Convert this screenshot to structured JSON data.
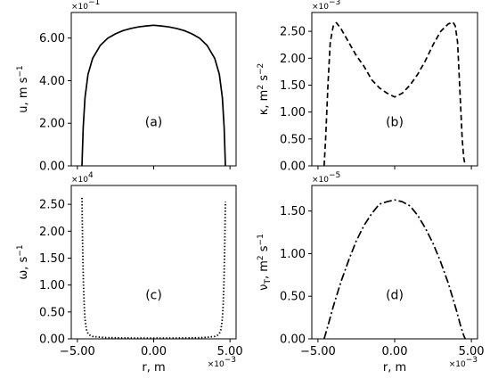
{
  "chart_data": [
    {
      "id": "a",
      "type": "line",
      "panel_label": "(a)",
      "ylabel": "u, m s^-1",
      "xlabel": "",
      "y_multiplier": "×10^-1",
      "x_multiplier": "",
      "xlim": [
        -5.4,
        5.4
      ],
      "ylim": [
        0,
        7.2
      ],
      "yticks": [
        0,
        2,
        4,
        6
      ],
      "ytick_labels": [
        "0.00",
        "2.00",
        "4.00",
        "6.00"
      ],
      "xticks": [],
      "xtick_labels": [],
      "line_style": "solid",
      "grid": false,
      "series": [
        {
          "x": [
            -4.7,
            -4.62,
            -4.5,
            -4.3,
            -4.0,
            -3.5,
            -3.0,
            -2.5,
            -2.0,
            -1.5,
            -1.0,
            -0.5,
            0,
            0.5,
            1.0,
            1.5,
            2.0,
            2.5,
            3.0,
            3.5,
            4.0,
            4.3,
            4.5,
            4.62,
            4.7
          ],
          "y": [
            0,
            1.8,
            3.2,
            4.3,
            5.05,
            5.65,
            6.0,
            6.2,
            6.35,
            6.45,
            6.52,
            6.57,
            6.6,
            6.57,
            6.52,
            6.45,
            6.35,
            6.2,
            6.0,
            5.65,
            5.05,
            4.3,
            3.2,
            1.8,
            0
          ]
        }
      ]
    },
    {
      "id": "b",
      "type": "line",
      "panel_label": "(b)",
      "ylabel": "κ, m^2 s^-2",
      "xlabel": "",
      "y_multiplier": "×10^-3",
      "x_multiplier": "",
      "xlim": [
        -5.4,
        5.4
      ],
      "ylim": [
        0,
        2.85
      ],
      "yticks": [
        0,
        0.5,
        1.0,
        1.5,
        2.0,
        2.5
      ],
      "ytick_labels": [
        "0.00",
        "0.50",
        "1.00",
        "1.50",
        "2.00",
        "2.50"
      ],
      "xticks": [],
      "xtick_labels": [],
      "line_style": "dashed",
      "grid": false,
      "series": [
        {
          "x": [
            -4.6,
            -4.5,
            -4.35,
            -4.2,
            -4.0,
            -3.8,
            -3.5,
            -3.0,
            -2.5,
            -2.0,
            -1.5,
            -1.0,
            -0.5,
            0,
            0.5,
            1.0,
            1.5,
            2.0,
            2.5,
            3.0,
            3.5,
            3.8,
            3.95,
            4.1,
            4.25,
            4.4,
            4.5,
            4.6
          ],
          "y": [
            0,
            0.5,
            1.5,
            2.3,
            2.6,
            2.66,
            2.55,
            2.3,
            2.05,
            1.85,
            1.6,
            1.45,
            1.35,
            1.28,
            1.35,
            1.5,
            1.7,
            1.95,
            2.25,
            2.5,
            2.64,
            2.67,
            2.6,
            2.3,
            1.4,
            0.5,
            0.15,
            0
          ]
        }
      ]
    },
    {
      "id": "c",
      "type": "line",
      "panel_label": "(c)",
      "ylabel": "ω, s^-1",
      "xlabel": "r, m",
      "y_multiplier": "×10^4",
      "x_multiplier": "×10^-3",
      "xlim": [
        -5.4,
        5.4
      ],
      "ylim": [
        0,
        2.85
      ],
      "yticks": [
        0,
        0.5,
        1.0,
        1.5,
        2.0,
        2.5
      ],
      "ytick_labels": [
        "0.00",
        "0.50",
        "1.00",
        "1.50",
        "2.00",
        "2.50"
      ],
      "xticks": [
        -5,
        0,
        5
      ],
      "xtick_labels": [
        "−5.00",
        "0.00",
        "5.00"
      ],
      "line_style": "dotted",
      "grid": false,
      "series": [
        {
          "x": [
            -4.7,
            -4.65,
            -4.6,
            -4.55,
            -4.5,
            -4.45,
            -4.4,
            -4.3,
            -4.2,
            -4.0,
            -3.5,
            -3.0,
            -2.0,
            -1.0,
            0,
            1.0,
            2.0,
            3.0,
            3.5,
            4.0,
            4.2,
            4.3,
            4.4,
            4.45,
            4.5,
            4.55,
            4.6,
            4.65,
            4.7
          ],
          "y": [
            2.62,
            1.7,
            1.0,
            0.6,
            0.38,
            0.25,
            0.17,
            0.1,
            0.07,
            0.045,
            0.03,
            0.022,
            0.017,
            0.014,
            0.013,
            0.014,
            0.017,
            0.022,
            0.03,
            0.045,
            0.07,
            0.1,
            0.17,
            0.25,
            0.38,
            0.6,
            1.0,
            1.7,
            2.55
          ]
        }
      ]
    },
    {
      "id": "d",
      "type": "line",
      "panel_label": "(d)",
      "ylabel": "ν_T, m^2 s^-1",
      "xlabel": "r, m",
      "y_multiplier": "×10^-5",
      "x_multiplier": "×10^-3",
      "xlim": [
        -5.4,
        5.4
      ],
      "ylim": [
        0,
        1.8
      ],
      "yticks": [
        0,
        0.5,
        1.0,
        1.5
      ],
      "ytick_labels": [
        "0.00",
        "0.50",
        "1.00",
        "1.50"
      ],
      "xticks": [
        -5,
        0,
        5
      ],
      "xtick_labels": [
        "−5.00",
        "0.00",
        "5.00"
      ],
      "line_style": "dashdot",
      "grid": false,
      "series": [
        {
          "x": [
            -4.6,
            -4.4,
            -4.0,
            -3.5,
            -3.0,
            -2.5,
            -2.0,
            -1.5,
            -1.0,
            -0.5,
            0,
            0.5,
            1.0,
            1.5,
            2.0,
            2.5,
            3.0,
            3.5,
            4.0,
            4.3,
            4.5,
            4.6
          ],
          "y": [
            0,
            0.12,
            0.38,
            0.67,
            0.92,
            1.15,
            1.33,
            1.47,
            1.58,
            1.61,
            1.63,
            1.61,
            1.56,
            1.45,
            1.3,
            1.12,
            0.9,
            0.65,
            0.35,
            0.15,
            0.04,
            0
          ]
        }
      ]
    }
  ]
}
